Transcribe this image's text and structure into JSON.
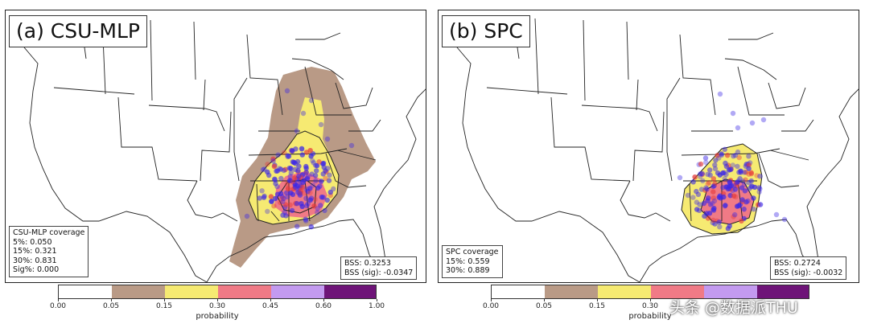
{
  "panel_a": {
    "title": "(a) CSU-MLP",
    "coverage": {
      "heading": "CSU-MLP coverage",
      "lines": [
        "5%: 0.050",
        "15%: 0.321",
        "30%: 0.831",
        "Sig%: 0.000"
      ]
    },
    "bss": {
      "line1": "BSS: 0.3253",
      "line2": "BSS (sig): -0.0347"
    }
  },
  "panel_b": {
    "title": "(b) SPC",
    "coverage": {
      "heading": "SPC coverage",
      "lines": [
        "15%: 0.559",
        "30%: 0.889"
      ]
    },
    "bss": {
      "line1": "BSS: 0.2724",
      "line2": "BSS (sig): -0.0032"
    }
  },
  "colorbar": {
    "label": "probability",
    "ticks": [
      "0.00",
      "0.05",
      "0.15",
      "0.30",
      "0.45",
      "0.60",
      "1.00"
    ],
    "ticks_b_visible": [
      "0.00",
      "0.05",
      "0.15",
      "0.30"
    ],
    "colors": [
      "#ffffff",
      "#b99a86",
      "#f6ea72",
      "#f07a86",
      "#c39af0",
      "#6e1478"
    ]
  },
  "colors": {
    "report_point": "#3c28e6",
    "sig_report_point": "#e63c3c",
    "map_line": "#222222"
  },
  "watermark": "头条 @数据派THU"
}
